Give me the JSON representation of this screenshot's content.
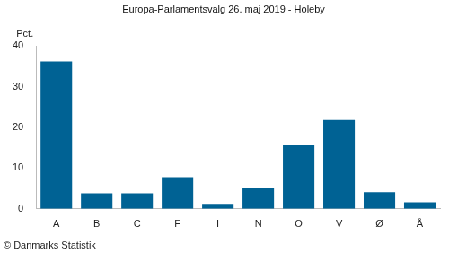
{
  "chart_data": {
    "type": "bar",
    "title": "Europa-Parlamentsvalg 26. maj 2019 - Holeby",
    "ylabel": "Pct.",
    "source": "© Danmarks Statistik",
    "categories": [
      "A",
      "B",
      "C",
      "F",
      "I",
      "N",
      "O",
      "V",
      "Ø",
      "Å"
    ],
    "values": [
      36.2,
      3.8,
      3.8,
      7.8,
      1.2,
      5.1,
      15.6,
      21.8,
      4.1,
      1.6
    ],
    "color": "#006294",
    "ylim": [
      0,
      40
    ],
    "yticks": [
      0,
      10,
      20,
      30,
      40
    ],
    "grid": false
  }
}
